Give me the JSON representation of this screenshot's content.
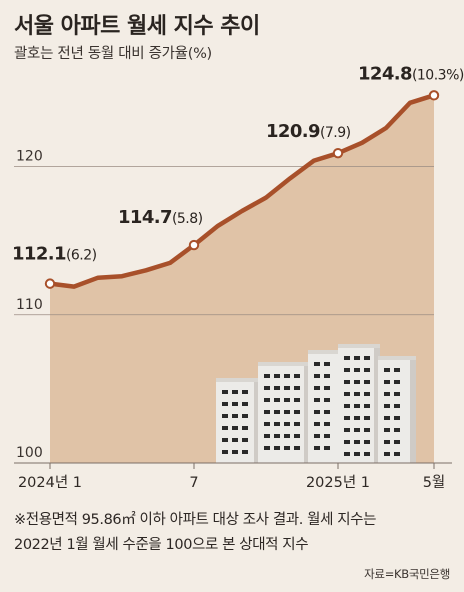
{
  "header": {
    "title": "서울 아파트 월세 지수 추이",
    "subtitle": "괄호는 전년 동월 대비 증가율(%)"
  },
  "footer": {
    "note_line1": "※전용면적 95.86㎡ 이하 아파트 대상 조사 결과. 월세 지수는",
    "note_line2": "2022년 1월 월세 수준을 100으로 본 상대적 지수",
    "source": "자료=KB국민은행"
  },
  "colors": {
    "line": "#a8502a",
    "area": "#e0c3a7",
    "axis": "#7b6e66",
    "grid": "#9b8d83",
    "background": "#f3ede5",
    "building_wall": "#ecebe8",
    "building_shadow": "#cfcbc6",
    "window": "#2a2a2a"
  },
  "illustration": "apartment-buildings",
  "chart_data": {
    "type": "area",
    "title": "서울 아파트 월세 지수 추이",
    "subtitle": "괄호는 전년 동월 대비 증가율(%)",
    "x_tick_labels": [
      {
        "index": 0,
        "label": "2024년 1"
      },
      {
        "index": 6,
        "label": "7"
      },
      {
        "index": 12,
        "label": "2025년 1"
      },
      {
        "index": 16,
        "label": "5월"
      }
    ],
    "y_ticks": [
      100,
      110,
      120
    ],
    "ylim": [
      100,
      125.7
    ],
    "points": [
      {
        "x": "2024-01",
        "y": 112.1
      },
      {
        "x": "2024-02",
        "y": 111.9
      },
      {
        "x": "2024-03",
        "y": 112.5
      },
      {
        "x": "2024-04",
        "y": 112.6
      },
      {
        "x": "2024-05",
        "y": 113.0
      },
      {
        "x": "2024-06",
        "y": 113.5
      },
      {
        "x": "2024-07",
        "y": 114.7
      },
      {
        "x": "2024-08",
        "y": 116.0
      },
      {
        "x": "2024-09",
        "y": 117.0
      },
      {
        "x": "2024-10",
        "y": 117.9
      },
      {
        "x": "2024-11",
        "y": 119.2
      },
      {
        "x": "2024-12",
        "y": 120.4
      },
      {
        "x": "2025-01",
        "y": 120.9
      },
      {
        "x": "2025-02",
        "y": 121.6
      },
      {
        "x": "2025-03",
        "y": 122.6
      },
      {
        "x": "2025-04",
        "y": 124.3
      },
      {
        "x": "2025-05",
        "y": 124.8
      }
    ],
    "annotations": [
      {
        "index": 0,
        "value": "112.1",
        "change": "(6.2)"
      },
      {
        "index": 6,
        "value": "114.7",
        "change": "(5.8)"
      },
      {
        "index": 12,
        "value": "120.9",
        "change": "(7.9)"
      },
      {
        "index": 16,
        "value": "124.8",
        "change": "(10.3%)"
      }
    ]
  }
}
